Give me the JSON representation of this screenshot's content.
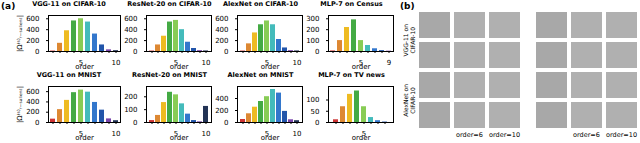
{
  "chart_data": [
    {
      "type": "bar",
      "title": "VGG-11 on CIFAR-10",
      "categories": [
        null,
        null,
        null,
        null,
        "5",
        null,
        null,
        null,
        null,
        "10"
      ],
      "values": [
        8,
        150,
        380,
        560,
        600,
        540,
        320,
        120,
        30,
        15
      ],
      "colors": [
        "#cc3333",
        "#dd8833",
        "#eebb22",
        "#44aa44",
        "#88cc55",
        "#44bbbb",
        "#3377cc",
        "#2255aa",
        "#7744aa",
        "#223355"
      ],
      "ylim": [
        0,
        660
      ],
      "yticks": [
        0,
        200,
        400,
        600
      ],
      "xlabel": "order",
      "ylabel": "|Ω⁽ˢ⁾ᵣ₋ₛₐₗᵢₑₙₜ|"
    },
    {
      "type": "bar",
      "title": "ResNet-20 on CIFAR-10",
      "categories": [
        null,
        null,
        null,
        null,
        "5",
        null,
        null,
        null,
        null,
        "10"
      ],
      "values": [
        8,
        120,
        280,
        540,
        570,
        400,
        170,
        55,
        15,
        10
      ],
      "colors": [
        "#cc3333",
        "#dd8833",
        "#eebb22",
        "#44aa44",
        "#88cc55",
        "#44bbbb",
        "#3377cc",
        "#2255aa",
        "#7744aa",
        "#223355"
      ],
      "ylim": [
        0,
        660
      ],
      "yticks": [
        0,
        200,
        400,
        600
      ],
      "xlabel": "order"
    },
    {
      "type": "bar",
      "title": "AlexNet on CIFAR-10",
      "categories": [
        null,
        null,
        null,
        null,
        "5",
        null,
        null,
        null,
        null,
        "10"
      ],
      "values": [
        8,
        140,
        340,
        490,
        560,
        490,
        220,
        65,
        15,
        10
      ],
      "colors": [
        "#cc3333",
        "#dd8833",
        "#eebb22",
        "#44aa44",
        "#88cc55",
        "#44bbbb",
        "#3377cc",
        "#2255aa",
        "#7744aa",
        "#223355"
      ],
      "ylim": [
        0,
        660
      ],
      "yticks": [
        0,
        200,
        400,
        600
      ],
      "xlabel": "order"
    },
    {
      "type": "bar",
      "title": "MLP-7 on Census",
      "categories": [
        null,
        null,
        null,
        null,
        "5",
        null,
        null,
        null,
        "9"
      ],
      "values": [
        5,
        100,
        220,
        290,
        100,
        55,
        25,
        8,
        3
      ],
      "colors": [
        "#cc3333",
        "#dd8833",
        "#eebb22",
        "#44aa44",
        "#88cc55",
        "#44bbbb",
        "#3377cc",
        "#2255aa",
        "#7744aa"
      ],
      "ylim": [
        0,
        330
      ],
      "yticks": [
        0,
        100,
        200,
        300
      ],
      "xlabel": "order"
    },
    {
      "type": "bar",
      "title": "VGG-11 on MNIST",
      "categories": [
        null,
        null,
        null,
        null,
        "5",
        null,
        null,
        null,
        null,
        "10"
      ],
      "values": [
        65,
        250,
        430,
        580,
        630,
        590,
        390,
        240,
        70,
        35
      ],
      "colors": [
        "#cc3333",
        "#dd8833",
        "#eebb22",
        "#44aa44",
        "#88cc55",
        "#44bbbb",
        "#3377cc",
        "#2255aa",
        "#7744aa",
        "#223355"
      ],
      "ylim": [
        0,
        700
      ],
      "yticks": [
        0,
        200,
        400,
        600
      ],
      "xlabel": "order",
      "ylabel": "|Ω⁽ˢ⁾ᵣ₋ₛₐₗᵢₑₙₜ|"
    },
    {
      "type": "bar",
      "title": "ResNet-20 on MNIST",
      "categories": [
        null,
        null,
        null,
        null,
        "5",
        null,
        null,
        null,
        null,
        "10"
      ],
      "values": [
        15,
        55,
        155,
        235,
        215,
        145,
        65,
        15,
        5,
        125
      ],
      "colors": [
        "#cc3333",
        "#dd8833",
        "#eebb22",
        "#44aa44",
        "#88cc55",
        "#44bbbb",
        "#3377cc",
        "#2255aa",
        "#7744aa",
        "#223355"
      ],
      "ylim": [
        0,
        280
      ],
      "yticks": [
        0,
        100,
        200
      ],
      "xlabel": "order"
    },
    {
      "type": "bar",
      "title": "AlexNet on MNIST",
      "categories": [
        null,
        null,
        null,
        null,
        "5",
        null,
        null,
        null,
        null,
        "10"
      ],
      "values": [
        50,
        145,
        255,
        350,
        430,
        550,
        490,
        185,
        45,
        30
      ],
      "colors": [
        "#cc3333",
        "#dd8833",
        "#eebb22",
        "#44aa44",
        "#88cc55",
        "#44bbbb",
        "#3377cc",
        "#2255aa",
        "#7744aa",
        "#223355"
      ],
      "ylim": [
        0,
        600
      ],
      "yticks": [
        0,
        200,
        400
      ],
      "xlabel": "order"
    },
    {
      "type": "bar",
      "title": "MLP-7 on TV news",
      "categories": [
        null,
        null,
        null,
        null,
        "5",
        null,
        null,
        null
      ],
      "values": [
        12,
        70,
        125,
        140,
        70,
        22,
        8,
        2
      ],
      "colors": [
        "#cc3333",
        "#dd8833",
        "#eebb22",
        "#44aa44",
        "#88cc55",
        "#44bbbb",
        "#3377cc",
        "#2255aa"
      ],
      "ylim": [
        0,
        160
      ],
      "yticks": [
        0,
        50,
        100
      ],
      "xlabel": "order"
    }
  ],
  "annotations": {
    "panel_labels": [
      "(a)",
      "(b)"
    ],
    "side_labels": [
      "VGG-11 on\nCIFAR-10",
      "AlexNet on\nCIFAR-10"
    ],
    "bottom_labels": [
      "order=6",
      "order=10",
      "order=6",
      "order=10"
    ]
  }
}
